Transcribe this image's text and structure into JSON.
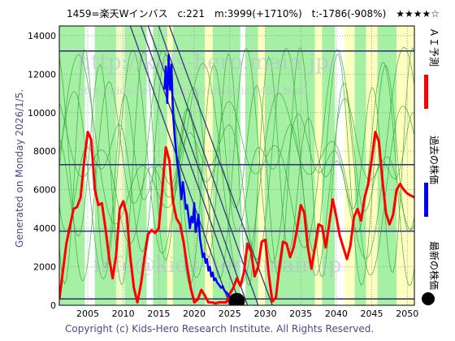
{
  "chart_data": {
    "type": "line",
    "title": "1459=楽天Wインバス　c:221　m:3999(+1710%)　t:-1786(-908%)　★★★★☆",
    "side_label": "Generated on Monday 2026/1/5.",
    "copyright": "Copyright (c) Kids-Hero Research Institute. All Rights Reserved.",
    "watermark_main": "http://kids-hero.main.jp/",
    "watermark_sub": "http://kids-hero.main.jp/analysis/1459.html",
    "watermark_bottom": "info@kids-hero.main.jp",
    "xlim": [
      2001,
      2051
    ],
    "ylim": [
      0,
      14500
    ],
    "x_ticks": [
      2005,
      2010,
      2015,
      2020,
      2025,
      2030,
      2035,
      2040,
      2045,
      2050
    ],
    "y_ticks": [
      0,
      2000,
      4000,
      6000,
      8000,
      10000,
      12000,
      14000
    ],
    "grid": true,
    "horizontal_levels": [
      13200,
      7300,
      3850,
      330
    ],
    "series": [
      {
        "name": "ＡＩ予測",
        "color": "#ff0000",
        "values_x": [
          2001,
          2002,
          2003,
          2003.5,
          2004,
          2004.5,
          2005,
          2005.5,
          2006,
          2006.5,
          2007,
          2007.5,
          2008,
          2008.5,
          2009,
          2009.5,
          2010,
          2010.5,
          2011,
          2011.5,
          2012,
          2012.5,
          2013,
          2013.5,
          2014,
          2014.5,
          2015,
          2015.5,
          2016,
          2016.5,
          2017,
          2017.5,
          2018,
          2018.5,
          2019,
          2019.5,
          2020,
          2020.5,
          2021,
          2021.5,
          2022,
          2022.5,
          2023,
          2023.5,
          2024,
          2024.5,
          2025,
          2025.5,
          2026,
          2026.5,
          2027,
          2027.5,
          2028,
          2028.5,
          2029,
          2029.5,
          2030,
          2030.5,
          2031,
          2031.5,
          2032,
          2032.5,
          2033,
          2033.5,
          2034,
          2034.5,
          2035,
          2035.5,
          2036,
          2036.5,
          2037,
          2037.5,
          2038,
          2038.5,
          2039,
          2039.5,
          2040,
          2040.5,
          2041,
          2041.5,
          2042,
          2042.5,
          2043,
          2043.5,
          2044,
          2044.5,
          2045,
          2045.5,
          2046,
          2046.5,
          2047,
          2047.5,
          2048,
          2048.5,
          2049,
          2049.5,
          2050,
          2050.5,
          2051
        ],
        "values_y": [
          300,
          3200,
          5000,
          5100,
          5600,
          7500,
          9000,
          8600,
          6000,
          5200,
          5300,
          4000,
          2500,
          1400,
          2600,
          5000,
          5400,
          4700,
          2500,
          900,
          150,
          1100,
          2500,
          3700,
          3900,
          3750,
          4000,
          6000,
          8200,
          7500,
          5400,
          4500,
          4200,
          3300,
          2000,
          900,
          150,
          300,
          800,
          500,
          150,
          150,
          100,
          150,
          150,
          150,
          600,
          900,
          1400,
          1000,
          1700,
          3200,
          2800,
          1500,
          2000,
          3300,
          3400,
          1600,
          200,
          400,
          2000,
          3300,
          3200,
          2500,
          3000,
          4000,
          5200,
          4800,
          3000,
          1900,
          3000,
          4200,
          4100,
          3000,
          4200,
          5500,
          4600,
          3600,
          3000,
          2400,
          3100,
          4600,
          5000,
          4400,
          5600,
          6300,
          7600,
          9000,
          8500,
          6500,
          4800,
          4200,
          4700,
          6000,
          6300,
          6000,
          5800,
          5700,
          5600
        ]
      },
      {
        "name": "過去の株価",
        "color": "#0000ff",
        "values_x": [
          2015.8,
          2016.0,
          2016.2,
          2016.4,
          2016.6,
          2016.8,
          2017.0,
          2017.2,
          2017.4,
          2017.6,
          2017.8,
          2018.0,
          2018.2,
          2018.4,
          2018.6,
          2018.8,
          2019.0,
          2019.2,
          2019.4,
          2019.6,
          2019.8,
          2020.0,
          2020.2,
          2020.4,
          2020.6,
          2020.8,
          2021.0,
          2021.2,
          2021.4,
          2021.6,
          2021.8,
          2022.0,
          2022.2,
          2022.4,
          2022.6,
          2022.8,
          2023.0,
          2023.2,
          2023.4,
          2023.6,
          2023.8,
          2024.0,
          2024.2,
          2024.4,
          2024.6,
          2024.8,
          2025.0,
          2025.2,
          2025.4,
          2025.6,
          2025.8,
          2026.0
        ],
        "values_y": [
          11200,
          12400,
          10500,
          13000,
          11200,
          12500,
          10000,
          9000,
          8200,
          7400,
          7000,
          6300,
          5500,
          6400,
          5800,
          5000,
          5200,
          4600,
          4000,
          4600,
          4300,
          5300,
          3800,
          4200,
          4700,
          3500,
          3000,
          2500,
          2700,
          2200,
          2400,
          1800,
          2000,
          1500,
          1700,
          1300,
          1400,
          1200,
          1100,
          1000,
          900,
          1000,
          800,
          700,
          650,
          500,
          450,
          400,
          300,
          300,
          250,
          221
        ]
      },
      {
        "name": "最新の株価",
        "color": "#000000",
        "values_x": [
          2026.0
        ],
        "values_y": [
          221
        ]
      }
    ],
    "legend": [
      "ＡＩ予測",
      "過去の株価",
      "最新の株価"
    ],
    "legend_placement": "right"
  }
}
